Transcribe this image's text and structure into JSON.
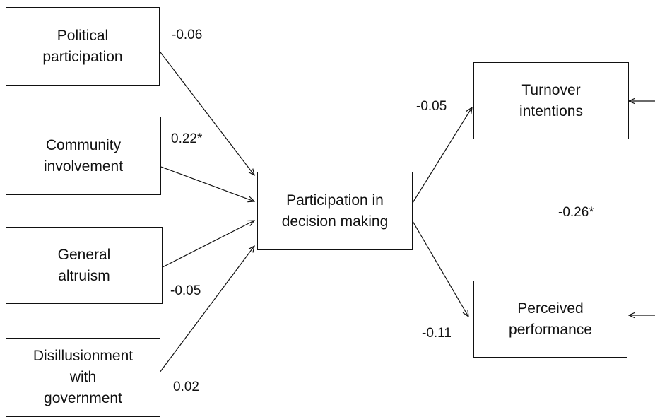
{
  "nodes": {
    "political_participation": "Political\nparticipation",
    "community_involvement": "Community\ninvolvement",
    "general_altruism": "General\naltruism",
    "disillusionment_with_government": "Disillusionment\nwith\ngovernment",
    "participation_in_decision_making": "Participation in\ndecision making",
    "turnover_intentions": "Turnover\nintentions",
    "perceived_performance": "Perceived\nperformance"
  },
  "coefficients": {
    "political_to_pdm": "-0.06",
    "community_to_pdm": "0.22*",
    "altruism_to_pdm": "-0.05",
    "disillusionment_to_pdm": "0.02",
    "pdm_to_turnover": "-0.05",
    "pdm_to_performance": "-0.11",
    "turnover_performance_covariance": "-0.26*"
  }
}
